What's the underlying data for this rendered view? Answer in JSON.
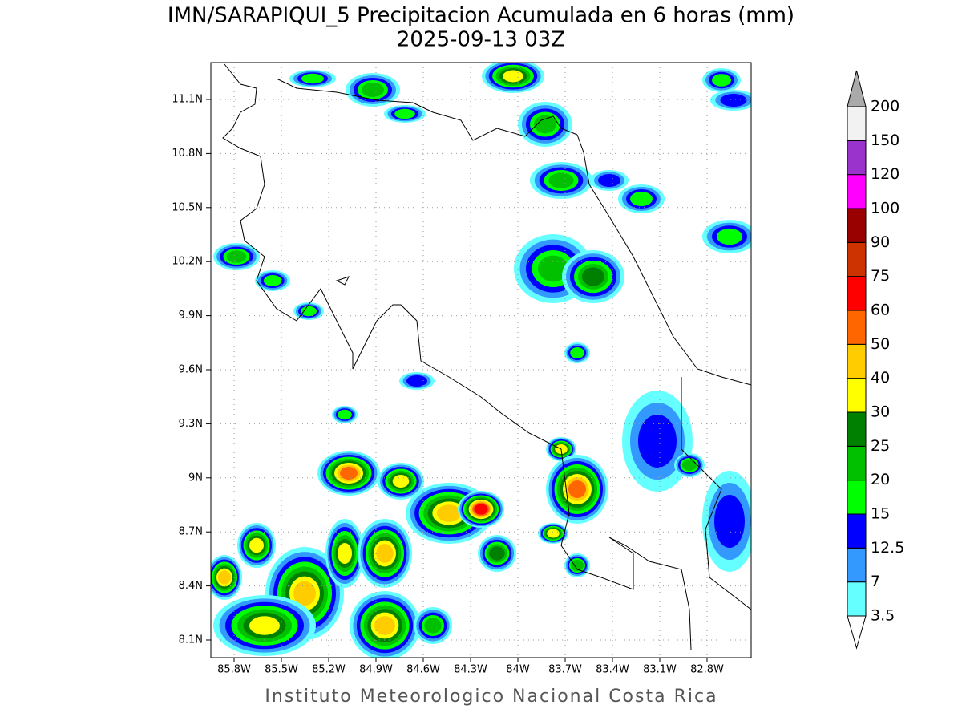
{
  "header": {
    "title": "IMN/SARAPIQUI_5 Precipitacion Acumulada en 6 horas (mm)",
    "subtitle": "2025-09-13 03Z"
  },
  "map": {
    "lon_ticks": [
      "85.8W",
      "85.5W",
      "85.2W",
      "84.9W",
      "84.6W",
      "84.3W",
      "84W",
      "83.7W",
      "83.4W",
      "83.1W",
      "82.8W"
    ],
    "lat_ticks": [
      "11.1N",
      "10.8N",
      "10.5N",
      "10.2N",
      "9.9N",
      "9.6N",
      "9.3N",
      "9N",
      "8.7N",
      "8.4N",
      "8.1N"
    ]
  },
  "colorbar": {
    "labels": [
      "3.5",
      "7",
      "12.5",
      "15",
      "20",
      "25",
      "30",
      "40",
      "50",
      "60",
      "75",
      "90",
      "100",
      "120",
      "150",
      "200"
    ],
    "colors": [
      "#66ffff",
      "#3399ff",
      "#0000ff",
      "#00ff00",
      "#00c000",
      "#008000",
      "#ffff00",
      "#ffcc00",
      "#ff6600",
      "#ff0000",
      "#cc3300",
      "#990000",
      "#ff00ff",
      "#9933cc",
      "#f2f2f2"
    ],
    "below_color": "#ffffff",
    "above_color": "#aaaaaa"
  },
  "footer": "Instituto Meteorologico Nacional Costa Rica"
}
